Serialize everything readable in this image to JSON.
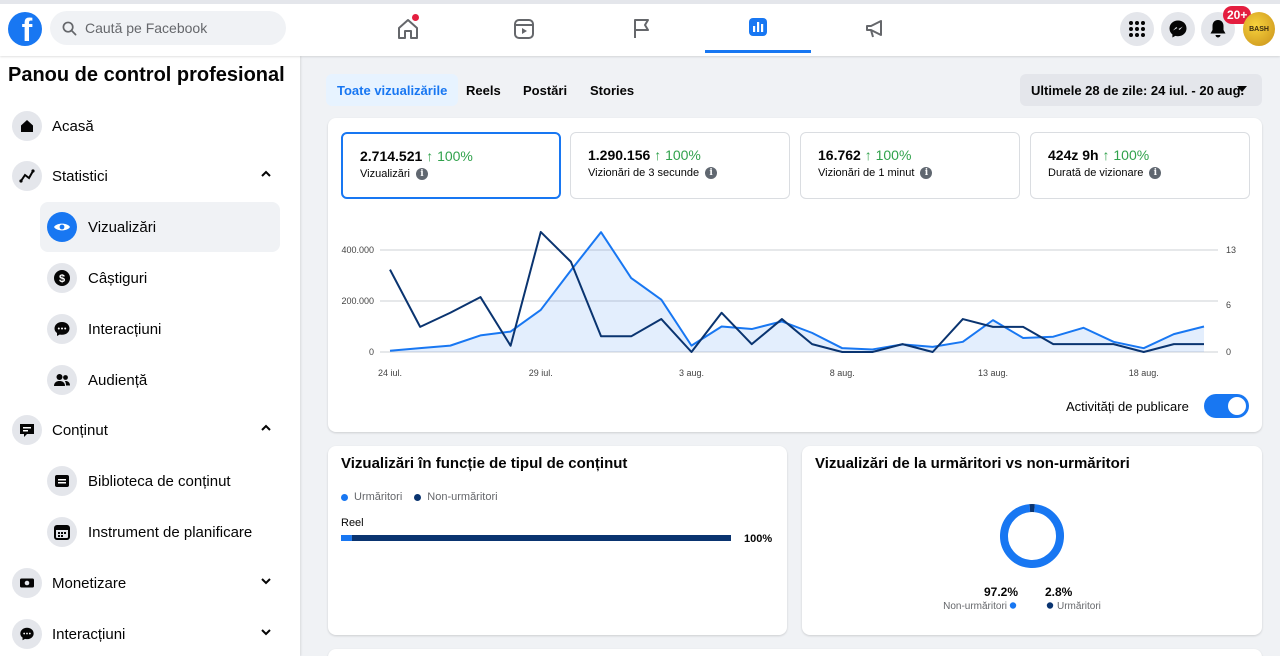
{
  "header": {
    "logo_letter": "f",
    "search_placeholder": "Caută pe Facebook",
    "notification_badge": "20+",
    "avatar_text": "BASH",
    "nav_icons": [
      "home-icon",
      "video-icon",
      "flag-icon",
      "insights-icon",
      "megaphone-icon"
    ],
    "right_icons": [
      "menu-grid-icon",
      "messenger-icon",
      "bell-icon"
    ]
  },
  "sidebar": {
    "title": "Panou de control profesional",
    "items": [
      {
        "label": "Acasă",
        "icon": "home-icon"
      },
      {
        "label": "Statistici",
        "icon": "trend-icon",
        "expanded": true
      },
      {
        "label": "Vizualizări",
        "icon": "eye-icon",
        "sub": true,
        "active": true
      },
      {
        "label": "Câștiguri",
        "icon": "dollar-icon",
        "sub": true
      },
      {
        "label": "Interacțiuni",
        "icon": "chat-icon",
        "sub": true
      },
      {
        "label": "Audiență",
        "icon": "people-icon",
        "sub": true
      },
      {
        "label": "Conținut",
        "icon": "content-icon",
        "expanded": true
      },
      {
        "label": "Biblioteca de conținut",
        "icon": "library-icon",
        "sub": true
      },
      {
        "label": "Instrument de planificare",
        "icon": "calendar-icon",
        "sub": true
      },
      {
        "label": "Monetizare",
        "icon": "money-icon",
        "expanded": false
      },
      {
        "label": "Interacțiuni",
        "icon": "chat-icon",
        "expanded": false
      }
    ]
  },
  "content_tabs": [
    {
      "label": "Toate vizualizările",
      "active": true
    },
    {
      "label": "Reels"
    },
    {
      "label": "Postări"
    },
    {
      "label": "Stories"
    }
  ],
  "date_range": "Ultimele 28 de zile: 24 iul. - 20 aug.",
  "metrics": [
    {
      "value": "2.714.521",
      "change": "↑ 100%",
      "label": "Vizualizări"
    },
    {
      "value": "1.290.156",
      "change": "↑ 100%",
      "label": "Vizionări de 3 secunde"
    },
    {
      "value": "16.762",
      "change": "↑ 100%",
      "label": "Vizionări de 1 minut"
    },
    {
      "value": "424z 9h",
      "change": "↑ 100%",
      "label": "Durată de vizionare"
    }
  ],
  "publishing_toggle": {
    "label": "Activități de publicare",
    "on": true
  },
  "chart_data": [
    {
      "type": "line",
      "x": [
        "24 iul.",
        "25 iul.",
        "26 iul.",
        "27 iul.",
        "28 iul.",
        "29 iul.",
        "30 iul.",
        "31 iul.",
        "1 aug.",
        "2 aug.",
        "3 aug.",
        "4 aug.",
        "5 aug.",
        "6 aug.",
        "7 aug.",
        "8 aug.",
        "9 aug.",
        "10 aug.",
        "11 aug.",
        "12 aug.",
        "13 aug.",
        "14 aug.",
        "15 aug.",
        "16 aug.",
        "17 aug.",
        "18 aug.",
        "19 aug.",
        "20 aug."
      ],
      "x_tick_labels": [
        "24 iul.",
        "29 iul.",
        "3 aug.",
        "8 aug.",
        "13 aug.",
        "18 aug."
      ],
      "y_left_ticks": [
        "0",
        "200.000",
        "400.000"
      ],
      "y_right_ticks": [
        "0",
        "6",
        "13"
      ],
      "ylim": [
        0,
        400000
      ],
      "y2lim": [
        0,
        13
      ],
      "series": [
        {
          "axis": "left",
          "area": true,
          "color": "#1877f2",
          "values": [
            5000,
            15000,
            25000,
            65000,
            80000,
            165000,
            320000,
            470000,
            290000,
            205000,
            25000,
            100000,
            90000,
            120000,
            75000,
            15000,
            10000,
            30000,
            20000,
            40000,
            125000,
            55000,
            60000,
            95000,
            40000,
            15000,
            70000,
            100000
          ]
        },
        {
          "axis": "right",
          "area": false,
          "color": "#0a3470",
          "values": [
            10.5,
            3.2,
            5,
            7,
            0.8,
            15.3,
            11.5,
            2,
            2,
            4.2,
            0,
            5,
            1,
            4.2,
            1,
            0,
            0,
            1,
            0,
            4.2,
            3.2,
            3.2,
            1,
            1,
            1,
            0,
            1,
            1
          ]
        }
      ],
      "grid": true
    },
    {
      "type": "bar",
      "title": "Vizualizări în funcție de tipul de conținut",
      "legend": [
        "Urmăritori",
        "Non-urmăritori"
      ],
      "categories": [
        "Reel"
      ],
      "series": [
        {
          "name": "Urmăritori",
          "color": "#1877f2",
          "values": [
            2.8
          ]
        },
        {
          "name": "Non-urmăritori",
          "color": "#0a3470",
          "values": [
            97.2
          ]
        }
      ],
      "total_label": "100%"
    },
    {
      "type": "pie",
      "title": "Vizualizări de la urmăritori vs non-urmăritori",
      "slices": [
        {
          "label": "Non-urmăritori",
          "value": 97.2,
          "display": "97.2%",
          "color": "#1877f2"
        },
        {
          "label": "Urmăritori",
          "value": 2.8,
          "display": "2.8%",
          "color": "#0a3470"
        }
      ]
    }
  ]
}
